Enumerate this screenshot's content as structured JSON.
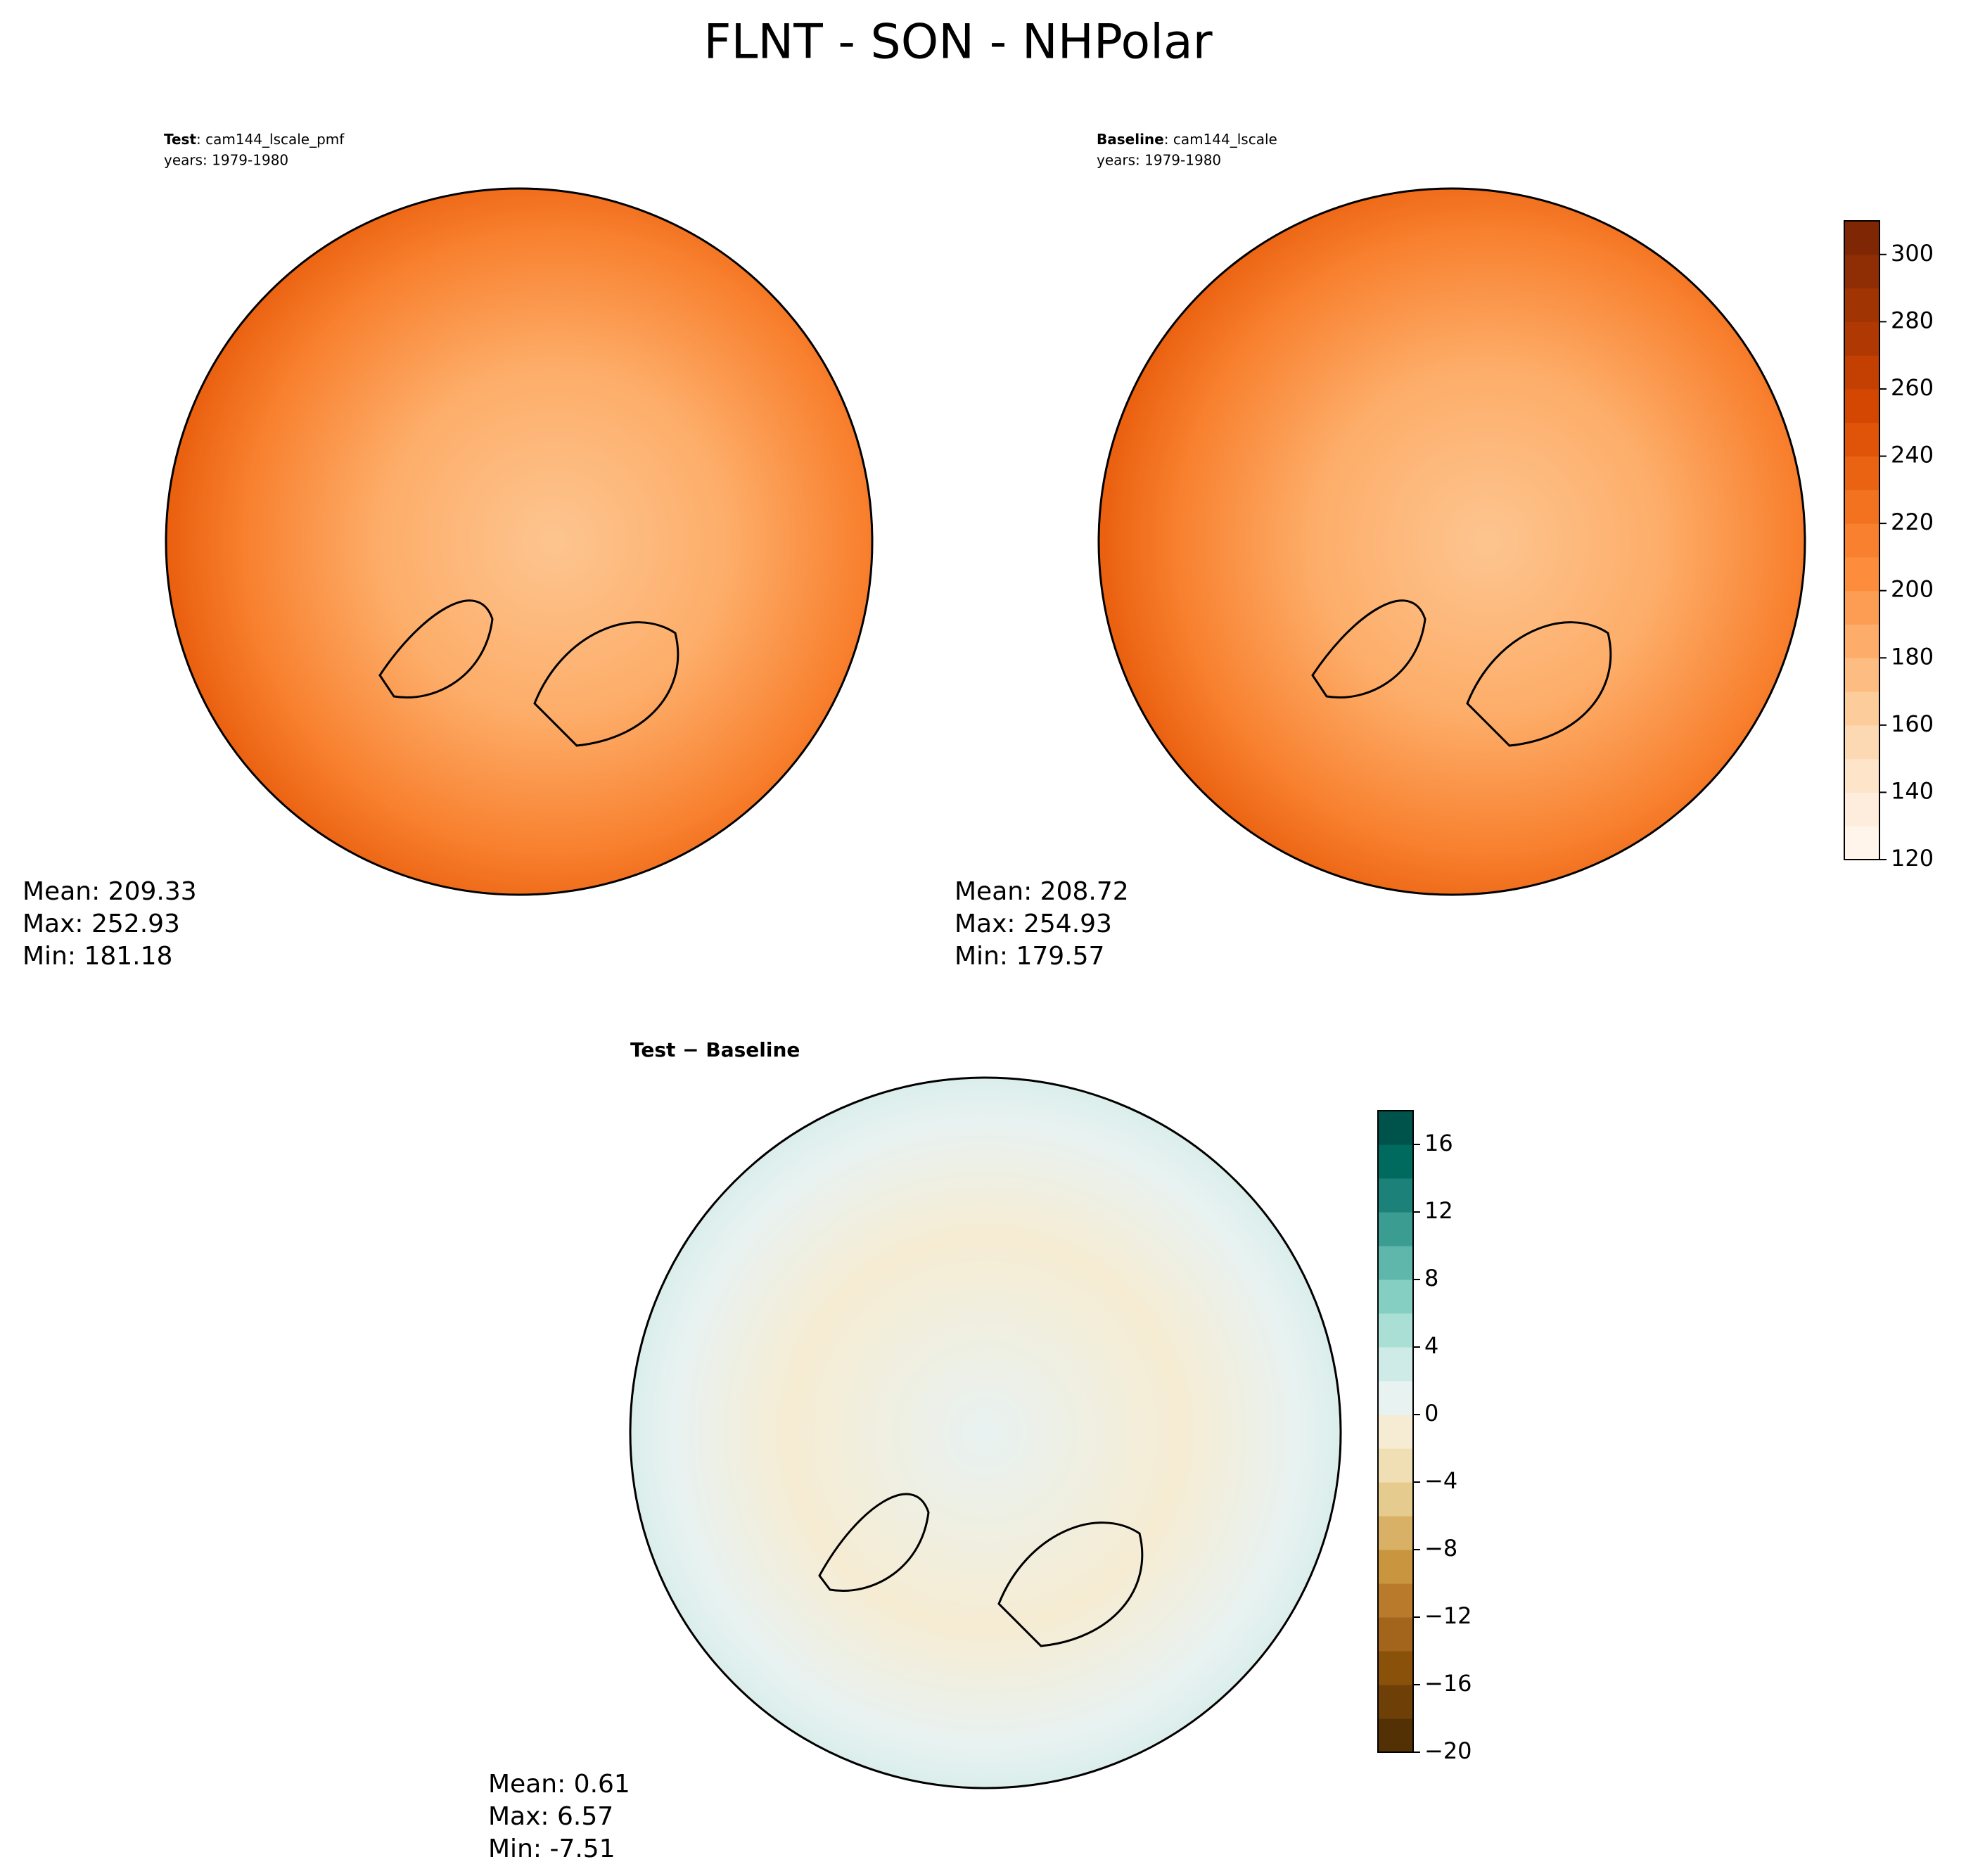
{
  "title": "FLNT - SON - NHPolar",
  "panels": [
    {
      "label_bold": "Test",
      "label_rest": ": cam144_lscale_pmf",
      "years": "years: 1979-1980",
      "stats": [
        "Mean: 209.33",
        "Max: 252.93",
        "Min: 181.18"
      ]
    },
    {
      "label_bold": "Baseline",
      "label_rest": ": cam144_lscale",
      "years": "years: 1979-1980",
      "stats": [
        "Mean: 208.72",
        "Max: 254.93",
        "Min: 179.57"
      ]
    },
    {
      "label_bold": "Test − Baseline",
      "stats": [
        "Mean:  0.61",
        "Max:  6.57",
        "Min: -7.51"
      ]
    }
  ],
  "colorbars": [
    {
      "lim": [
        120,
        310
      ],
      "ticks": [
        120,
        140,
        160,
        180,
        200,
        220,
        240,
        260,
        280,
        300
      ],
      "colors": [
        "#fff5eb",
        "#feeddc",
        "#fee4c9",
        "#fdd9b3",
        "#fdcc9b",
        "#fdbd82",
        "#fdad69",
        "#fd9d53",
        "#fd8d3c",
        "#f8802e",
        "#f27220",
        "#ea6312",
        "#e05409",
        "#d34703",
        "#c34002",
        "#b03903",
        "#a03403",
        "#8f2e04",
        "#7f2704"
      ]
    },
    {
      "lim": [
        -20,
        18
      ],
      "ticks": [
        {
          "value": -20,
          "label": "−20"
        },
        {
          "value": -16,
          "label": "−16"
        },
        {
          "value": -12,
          "label": "−12"
        },
        {
          "value": -8,
          "label": "−8"
        },
        {
          "value": -4,
          "label": "−4"
        },
        0,
        4,
        8,
        12,
        16
      ],
      "colors": [
        "#543005",
        "#6e4008",
        "#8a510b",
        "#a3651b",
        "#b97a2c",
        "#c9963f",
        "#d9b166",
        "#e6cb8e",
        "#f0dfb4",
        "#f6ecd3",
        "#e8f2f1",
        "#cfebe7",
        "#aadfd6",
        "#84cfc2",
        "#5fb6aa",
        "#3b9c91",
        "#1c8178",
        "#016a5f",
        "#00534a"
      ]
    }
  ]
}
